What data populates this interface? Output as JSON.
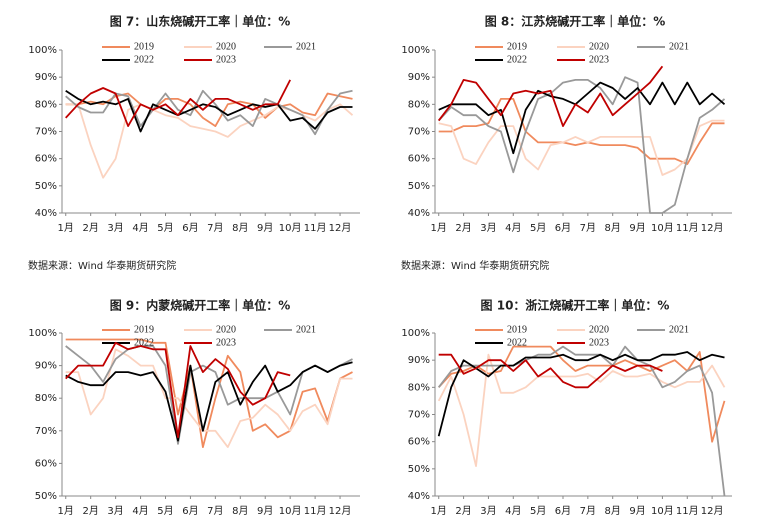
{
  "chart_data": [
    {
      "type": "line",
      "title": "图 7：山东烧碱开工率｜单位：%",
      "source": "数据来源：Wind  华泰期货研究院",
      "x": [
        1,
        1.5,
        2,
        2.5,
        3,
        3.5,
        4,
        4.5,
        5,
        5.5,
        6,
        6.5,
        7,
        7.5,
        8,
        8.5,
        9,
        9.5,
        10,
        10.5,
        11,
        11.5,
        12,
        12.5
      ],
      "xlim": [
        0.85,
        12.8
      ],
      "xticks": [
        {
          "value": 1,
          "label": "1月"
        },
        {
          "value": 2,
          "label": "2月"
        },
        {
          "value": 3,
          "label": "3月"
        },
        {
          "value": 4,
          "label": "4月"
        },
        {
          "value": 5,
          "label": "5月"
        },
        {
          "value": 6,
          "label": "6月"
        },
        {
          "value": 7,
          "label": "7月"
        },
        {
          "value": 8,
          "label": "8月"
        },
        {
          "value": 9,
          "label": "9月"
        },
        {
          "value": 10,
          "label": "10月"
        },
        {
          "value": 11,
          "label": "11月"
        },
        {
          "value": 12,
          "label": "12月"
        }
      ],
      "ylim": [
        40,
        100
      ],
      "yticks": [
        {
          "value": 40,
          "label": "40%"
        },
        {
          "value": 50,
          "label": "50%"
        },
        {
          "value": 60,
          "label": "60%"
        },
        {
          "value": 70,
          "label": "70%"
        },
        {
          "value": 80,
          "label": "80%"
        },
        {
          "value": 90,
          "label": "90%"
        },
        {
          "value": 100,
          "label": "100%"
        }
      ],
      "series": [
        {
          "name": "2019",
          "color": "#f08a5d",
          "values": [
            80,
            80,
            81,
            80,
            83,
            84,
            80,
            78,
            82,
            82,
            80,
            75,
            72,
            80,
            81,
            80,
            75,
            79,
            80,
            77,
            76,
            84,
            83,
            82
          ]
        },
        {
          "name": "2020",
          "color": "#fbd3c0",
          "values": [
            80,
            80,
            65,
            53,
            60,
            78,
            80,
            78,
            76,
            75,
            72,
            71,
            70,
            68,
            72,
            74,
            76,
            79,
            78,
            76,
            74,
            78,
            80,
            76
          ]
        },
        {
          "name": "2021",
          "color": "#999999",
          "values": [
            83,
            79,
            77,
            77,
            84,
            83,
            72,
            78,
            84,
            78,
            76,
            85,
            80,
            74,
            76,
            72,
            82,
            80,
            78,
            76,
            69,
            78,
            84,
            85
          ]
        },
        {
          "name": "2022",
          "color": "#000000",
          "values": [
            85,
            82,
            80,
            81,
            80,
            82,
            70,
            80,
            78,
            76,
            78,
            80,
            79,
            76,
            78,
            80,
            79,
            80,
            74,
            75,
            71,
            77,
            79,
            79
          ]
        },
        {
          "name": "2023",
          "color": "#c00000",
          "values": [
            75,
            80,
            84,
            86,
            84,
            72,
            80,
            78,
            80,
            76,
            82,
            78,
            82,
            82,
            80,
            78,
            80,
            80,
            89,
            null,
            null,
            null,
            null,
            null
          ]
        }
      ]
    },
    {
      "type": "line",
      "title": "图 8：江苏烧碱开工率｜单位：%",
      "source": "数据来源：Wind  华泰期货研究院",
      "x": [
        1,
        1.5,
        2,
        2.5,
        3,
        3.5,
        4,
        4.5,
        5,
        5.5,
        6,
        6.5,
        7,
        7.5,
        8,
        8.5,
        9,
        9.5,
        10,
        10.5,
        11,
        11.5,
        12,
        12.5
      ],
      "xlim": [
        0.85,
        12.8
      ],
      "xticks": [
        {
          "value": 1,
          "label": "1月"
        },
        {
          "value": 2,
          "label": "2月"
        },
        {
          "value": 3,
          "label": "3月"
        },
        {
          "value": 4,
          "label": "4月"
        },
        {
          "value": 5,
          "label": "5月"
        },
        {
          "value": 6,
          "label": "6月"
        },
        {
          "value": 7,
          "label": "7月"
        },
        {
          "value": 8,
          "label": "8月"
        },
        {
          "value": 9,
          "label": "9月"
        },
        {
          "value": 10,
          "label": "10月"
        },
        {
          "value": 11,
          "label": "11月"
        },
        {
          "value": 12,
          "label": "12月"
        }
      ],
      "ylim": [
        40,
        100
      ],
      "yticks": [
        {
          "value": 40,
          "label": "40%"
        },
        {
          "value": 50,
          "label": "50%"
        },
        {
          "value": 60,
          "label": "60%"
        },
        {
          "value": 70,
          "label": "70%"
        },
        {
          "value": 80,
          "label": "80%"
        },
        {
          "value": 90,
          "label": "90%"
        },
        {
          "value": 100,
          "label": "100%"
        }
      ],
      "series": [
        {
          "name": "2019",
          "color": "#f08a5d",
          "values": [
            70,
            70,
            72,
            72,
            73,
            82,
            82,
            70,
            66,
            66,
            66,
            65,
            66,
            65,
            65,
            65,
            64,
            60,
            60,
            60,
            58,
            66,
            73,
            73
          ]
        },
        {
          "name": "2020",
          "color": "#fbd3c0",
          "values": [
            73,
            72,
            60,
            58,
            66,
            72,
            72,
            60,
            56,
            65,
            66,
            68,
            66,
            68,
            68,
            68,
            68,
            68,
            54,
            56,
            60,
            72,
            74,
            74
          ]
        },
        {
          "name": "2021",
          "color": "#999999",
          "values": [
            74,
            79,
            76,
            76,
            72,
            70,
            55,
            70,
            82,
            84,
            88,
            89,
            89,
            86,
            80,
            90,
            88,
            40,
            40,
            43,
            60,
            75,
            78,
            82
          ]
        },
        {
          "name": "2022",
          "color": "#000000",
          "values": [
            78,
            80,
            80,
            80,
            76,
            78,
            62,
            78,
            85,
            83,
            82,
            80,
            84,
            88,
            86,
            82,
            86,
            80,
            88,
            80,
            88,
            80,
            84,
            80
          ]
        },
        {
          "name": "2023",
          "color": "#c00000",
          "values": [
            74,
            80,
            89,
            88,
            82,
            76,
            84,
            85,
            84,
            85,
            72,
            80,
            77,
            84,
            76,
            80,
            84,
            88,
            94,
            null,
            null,
            null,
            null,
            null
          ]
        }
      ]
    },
    {
      "type": "line",
      "title": "图 9：内蒙烧碱开工率｜单位：%",
      "x": [
        1,
        1.5,
        2,
        2.5,
        3,
        3.5,
        4,
        4.5,
        5,
        5.5,
        6,
        6.5,
        7,
        7.5,
        8,
        8.5,
        9,
        9.5,
        10,
        10.5,
        11,
        11.5,
        12,
        12.5
      ],
      "xlim": [
        0.85,
        12.8
      ],
      "xticks": [
        {
          "value": 1,
          "label": "1月"
        },
        {
          "value": 2,
          "label": "2月"
        },
        {
          "value": 3,
          "label": "3月"
        },
        {
          "value": 4,
          "label": "4月"
        },
        {
          "value": 5,
          "label": "5月"
        },
        {
          "value": 6,
          "label": "6月"
        },
        {
          "value": 7,
          "label": "7月"
        },
        {
          "value": 8,
          "label": "8月"
        },
        {
          "value": 9,
          "label": "9月"
        },
        {
          "value": 10,
          "label": "10月"
        },
        {
          "value": 11,
          "label": "11月"
        },
        {
          "value": 12,
          "label": "12月"
        }
      ],
      "ylim": [
        50,
        100
      ],
      "yticks": [
        {
          "value": 50,
          "label": "50%"
        },
        {
          "value": 60,
          "label": "60%"
        },
        {
          "value": 70,
          "label": "70%"
        },
        {
          "value": 80,
          "label": "80%"
        },
        {
          "value": 90,
          "label": "90%"
        },
        {
          "value": 100,
          "label": "100%"
        }
      ],
      "series": [
        {
          "name": "2019",
          "color": "#f08a5d",
          "values": [
            98,
            98,
            98,
            98,
            98,
            98,
            98,
            97,
            97,
            75,
            90,
            65,
            80,
            93,
            88,
            70,
            72,
            68,
            70,
            82,
            83,
            73,
            86,
            88
          ]
        },
        {
          "name": "2020",
          "color": "#fbd3c0",
          "values": [
            88,
            88,
            75,
            80,
            95,
            93,
            90,
            90,
            80,
            80,
            75,
            70,
            70,
            65,
            73,
            74,
            78,
            75,
            70,
            76,
            78,
            72,
            86,
            86
          ]
        },
        {
          "name": "2021",
          "color": "#999999",
          "values": [
            96,
            93,
            90,
            85,
            92,
            95,
            96,
            96,
            90,
            66,
            88,
            90,
            88,
            78,
            80,
            80,
            80,
            82,
            75,
            88,
            90,
            88,
            90,
            92
          ]
        },
        {
          "name": "2022",
          "color": "#000000",
          "values": [
            87,
            85,
            84,
            84,
            88,
            88,
            87,
            88,
            82,
            67,
            90,
            70,
            85,
            88,
            78,
            85,
            90,
            82,
            84,
            88,
            90,
            88,
            90,
            91
          ]
        },
        {
          "name": "2023",
          "color": "#c00000",
          "values": [
            86,
            90,
            90,
            90,
            97,
            95,
            96,
            95,
            95,
            68,
            96,
            88,
            92,
            89,
            82,
            78,
            80,
            88,
            87,
            null,
            null,
            null,
            null,
            null
          ]
        }
      ]
    },
    {
      "type": "line",
      "title": "图 10：浙江烧碱开工率｜单位：%",
      "x": [
        1,
        1.5,
        2,
        2.5,
        3,
        3.5,
        4,
        4.5,
        5,
        5.5,
        6,
        6.5,
        7,
        7.5,
        8,
        8.5,
        9,
        9.5,
        10,
        10.5,
        11,
        11.5,
        12,
        12.5
      ],
      "xlim": [
        0.85,
        12.8
      ],
      "xticks": [
        {
          "value": 1,
          "label": "1月"
        },
        {
          "value": 2,
          "label": "2月"
        },
        {
          "value": 3,
          "label": "3月"
        },
        {
          "value": 4,
          "label": "4月"
        },
        {
          "value": 5,
          "label": "5月"
        },
        {
          "value": 6,
          "label": "6月"
        },
        {
          "value": 7,
          "label": "7月"
        },
        {
          "value": 8,
          "label": "8月"
        },
        {
          "value": 9,
          "label": "9月"
        },
        {
          "value": 10,
          "label": "10月"
        },
        {
          "value": 11,
          "label": "11月"
        },
        {
          "value": 12,
          "label": "12月"
        }
      ],
      "ylim": [
        40,
        100
      ],
      "yticks": [
        {
          "value": 40,
          "label": "40%"
        },
        {
          "value": 50,
          "label": "50%"
        },
        {
          "value": 60,
          "label": "60%"
        },
        {
          "value": 70,
          "label": "70%"
        },
        {
          "value": 80,
          "label": "80%"
        },
        {
          "value": 90,
          "label": "90%"
        },
        {
          "value": 100,
          "label": "100%"
        }
      ],
      "series": [
        {
          "name": "2019",
          "color": "#f08a5d",
          "values": [
            80,
            85,
            86,
            88,
            85,
            86,
            95,
            95,
            95,
            95,
            90,
            86,
            88,
            88,
            88,
            90,
            88,
            86,
            88,
            90,
            86,
            93,
            60,
            75
          ]
        },
        {
          "name": "2020",
          "color": "#fbd3c0",
          "values": [
            75,
            84,
            70,
            51,
            92,
            78,
            78,
            80,
            84,
            84,
            84,
            84,
            85,
            82,
            86,
            84,
            84,
            85,
            82,
            80,
            82,
            82,
            88,
            80
          ]
        },
        {
          "name": "2021",
          "color": "#999999",
          "values": [
            80,
            86,
            88,
            88,
            88,
            88,
            88,
            90,
            92,
            92,
            95,
            92,
            92,
            92,
            88,
            95,
            90,
            88,
            80,
            82,
            86,
            88,
            78,
            40
          ]
        },
        {
          "name": "2022",
          "color": "#000000",
          "values": [
            62,
            80,
            90,
            87,
            84,
            88,
            88,
            91,
            91,
            91,
            92,
            90,
            90,
            92,
            90,
            92,
            90,
            90,
            92,
            92,
            93,
            90,
            92,
            91
          ]
        },
        {
          "name": "2023",
          "color": "#c00000",
          "values": [
            92,
            92,
            85,
            87,
            90,
            90,
            86,
            90,
            84,
            87,
            82,
            80,
            80,
            84,
            88,
            86,
            88,
            88,
            86,
            null,
            null,
            null,
            null,
            null
          ]
        }
      ]
    }
  ]
}
